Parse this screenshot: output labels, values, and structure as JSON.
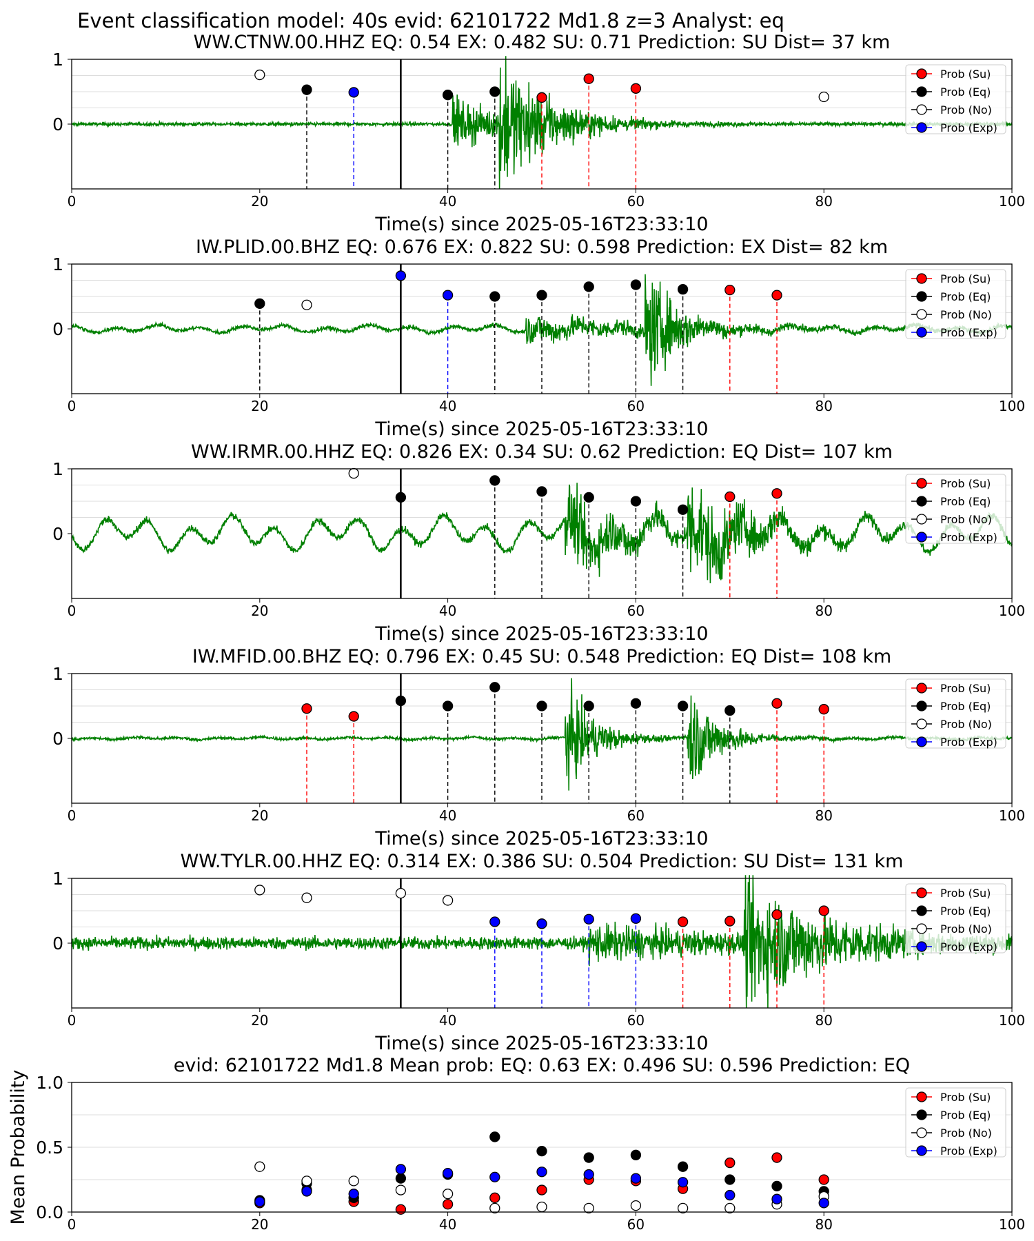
{
  "figure": {
    "suptitle": "Event classification model: 40s evid: 62101722 Md1.8 z=3 Analyst: eq"
  },
  "colors": {
    "waveform": "#008000",
    "su": "#ff0000",
    "eq": "#000000",
    "no": "#ffffff",
    "exp": "#0000ff"
  },
  "legend": {
    "labels": [
      "Prob (Su)",
      "Prob (Eq)",
      "Prob (No)",
      "Prob (Exp)"
    ],
    "placement": "top-right"
  },
  "chart_data": [
    {
      "type": "scatter",
      "title": "WW.CTNW.00.HHZ   EQ: 0.54   EX: 0.482   SU: 0.71   Prediction: SU    Dist= 37 km",
      "xlabel": "Time(s) since 2025-05-16T23:33:10",
      "xlim": [
        0,
        100
      ],
      "ylim": [
        -1,
        1
      ],
      "xticks": [
        "0",
        "20",
        "40",
        "60",
        "80",
        "100"
      ],
      "yticks": [
        "1",
        "0"
      ],
      "event_line": 35,
      "waveform": {
        "amp": 0.25,
        "noise": 0.025,
        "long_period": 0,
        "onsets": [
          [
            40.5,
            0.35,
            6
          ],
          [
            45.5,
            0.85,
            5
          ]
        ]
      },
      "windows": [
        {
          "x": 20,
          "class": "no",
          "prob": 0.76,
          "line": false
        },
        {
          "x": 25,
          "class": "eq",
          "prob": 0.53,
          "line": true
        },
        {
          "x": 30,
          "class": "exp",
          "prob": 0.49,
          "line": true
        },
        {
          "x": 40,
          "class": "eq",
          "prob": 0.45,
          "line": true
        },
        {
          "x": 45,
          "class": "eq",
          "prob": 0.5,
          "line": true
        },
        {
          "x": 50,
          "class": "su",
          "prob": 0.41,
          "line": true
        },
        {
          "x": 55,
          "class": "su",
          "prob": 0.7,
          "line": true
        },
        {
          "x": 60,
          "class": "su",
          "prob": 0.55,
          "line": true
        },
        {
          "x": 80,
          "class": "no",
          "prob": 0.42,
          "line": false
        }
      ]
    },
    {
      "type": "scatter",
      "title": "IW.PLID.00.BHZ   EQ: 0.676   EX: 0.822   SU: 0.598    Prediction: EX     Dist= 82 km",
      "xlabel": "Time(s) since 2025-05-16T23:33:10",
      "xlim": [
        0,
        100
      ],
      "ylim": [
        -1,
        1
      ],
      "xticks": [
        "0",
        "20",
        "40",
        "60",
        "80",
        "100"
      ],
      "yticks": [
        "1",
        "0"
      ],
      "event_line": 35,
      "waveform": {
        "amp": 0.25,
        "noise": 0.03,
        "long_period": 0.06,
        "onsets": [
          [
            48.3,
            0.2,
            12
          ],
          [
            61,
            0.85,
            3
          ]
        ]
      },
      "windows": [
        {
          "x": 20,
          "class": "eq",
          "prob": 0.39,
          "line": true
        },
        {
          "x": 25,
          "class": "no",
          "prob": 0.37,
          "line": false
        },
        {
          "x": 35,
          "class": "exp",
          "prob": 0.82,
          "line": false
        },
        {
          "x": 40,
          "class": "exp",
          "prob": 0.52,
          "line": true
        },
        {
          "x": 45,
          "class": "eq",
          "prob": 0.5,
          "line": true
        },
        {
          "x": 50,
          "class": "eq",
          "prob": 0.52,
          "line": true
        },
        {
          "x": 55,
          "class": "eq",
          "prob": 0.65,
          "line": true
        },
        {
          "x": 60,
          "class": "eq",
          "prob": 0.68,
          "line": true
        },
        {
          "x": 65,
          "class": "eq",
          "prob": 0.61,
          "line": true
        },
        {
          "x": 70,
          "class": "su",
          "prob": 0.6,
          "line": true
        },
        {
          "x": 75,
          "class": "su",
          "prob": 0.52,
          "line": true
        }
      ]
    },
    {
      "type": "scatter",
      "title": "WW.IRMR.00.HHZ   EQ: 0.826   EX: 0.34   SU: 0.62   Prediction: EQ    Dist= 107 km",
      "xlabel": "Time(s) since 2025-05-16T23:33:10",
      "xlim": [
        0,
        100
      ],
      "ylim": [
        -1,
        1
      ],
      "xticks": [
        "0",
        "20",
        "40",
        "60",
        "80",
        "100"
      ],
      "yticks": [
        "1",
        "0"
      ],
      "event_line": 35,
      "waveform": {
        "amp": 0.25,
        "noise": 0.05,
        "long_period": 0.28,
        "onsets": [
          [
            52.5,
            0.5,
            8
          ],
          [
            65.5,
            0.65,
            6
          ]
        ]
      },
      "windows": [
        {
          "x": 30,
          "class": "no",
          "prob": 0.93,
          "line": false
        },
        {
          "x": 35,
          "class": "eq",
          "prob": 0.56,
          "line": false
        },
        {
          "x": 45,
          "class": "eq",
          "prob": 0.82,
          "line": true
        },
        {
          "x": 50,
          "class": "eq",
          "prob": 0.65,
          "line": true
        },
        {
          "x": 55,
          "class": "eq",
          "prob": 0.56,
          "line": true
        },
        {
          "x": 60,
          "class": "eq",
          "prob": 0.5,
          "line": true
        },
        {
          "x": 65,
          "class": "eq",
          "prob": 0.37,
          "line": true
        },
        {
          "x": 70,
          "class": "su",
          "prob": 0.57,
          "line": true
        },
        {
          "x": 75,
          "class": "su",
          "prob": 0.62,
          "line": true
        }
      ]
    },
    {
      "type": "scatter",
      "title": "IW.MFID.00.BHZ   EQ: 0.796   EX: 0.45   SU: 0.548   Prediction: EQ    Dist= 108 km",
      "xlabel": "Time(s) since 2025-05-16T23:33:10",
      "xlim": [
        0,
        100
      ],
      "ylim": [
        -1,
        1
      ],
      "xticks": [
        "0",
        "20",
        "40",
        "60",
        "80",
        "100"
      ],
      "yticks": [
        "1",
        "0"
      ],
      "event_line": 35,
      "waveform": {
        "amp": 0.25,
        "noise": 0.02,
        "long_period": 0.02,
        "onsets": [
          [
            52.5,
            0.75,
            3
          ],
          [
            65.5,
            0.8,
            3
          ]
        ]
      },
      "windows": [
        {
          "x": 25,
          "class": "su",
          "prob": 0.46,
          "line": true
        },
        {
          "x": 30,
          "class": "su",
          "prob": 0.34,
          "line": true
        },
        {
          "x": 35,
          "class": "eq",
          "prob": 0.58,
          "line": false
        },
        {
          "x": 40,
          "class": "eq",
          "prob": 0.5,
          "line": true
        },
        {
          "x": 45,
          "class": "eq",
          "prob": 0.79,
          "line": true
        },
        {
          "x": 50,
          "class": "eq",
          "prob": 0.5,
          "line": true
        },
        {
          "x": 55,
          "class": "eq",
          "prob": 0.5,
          "line": true
        },
        {
          "x": 60,
          "class": "eq",
          "prob": 0.54,
          "line": true
        },
        {
          "x": 65,
          "class": "eq",
          "prob": 0.5,
          "line": true
        },
        {
          "x": 70,
          "class": "eq",
          "prob": 0.43,
          "line": true
        },
        {
          "x": 75,
          "class": "su",
          "prob": 0.54,
          "line": true
        },
        {
          "x": 80,
          "class": "su",
          "prob": 0.45,
          "line": true
        }
      ]
    },
    {
      "type": "scatter",
      "title": "WW.TYLR.00.HHZ   EQ: 0.314   EX: 0.386   SU: 0.504    Prediction: SU     Dist= 131 km",
      "xlabel": "Time(s) since 2025-05-16T23:33:10",
      "xlim": [
        0,
        100
      ],
      "ylim": [
        -1,
        1
      ],
      "xticks": [
        "0",
        "20",
        "40",
        "60",
        "80",
        "100"
      ],
      "yticks": [
        "1",
        "0"
      ],
      "event_line": 35,
      "waveform": {
        "amp": 0.25,
        "noise": 0.09,
        "long_period": 0,
        "onsets": [
          [
            55,
            0.2,
            15
          ],
          [
            71.5,
            0.9,
            8
          ]
        ]
      },
      "windows": [
        {
          "x": 20,
          "class": "no",
          "prob": 0.82,
          "line": false
        },
        {
          "x": 25,
          "class": "no",
          "prob": 0.7,
          "line": false
        },
        {
          "x": 35,
          "class": "no",
          "prob": 0.77,
          "line": false
        },
        {
          "x": 40,
          "class": "no",
          "prob": 0.66,
          "line": false
        },
        {
          "x": 45,
          "class": "exp",
          "prob": 0.33,
          "line": true
        },
        {
          "x": 50,
          "class": "exp",
          "prob": 0.3,
          "line": true
        },
        {
          "x": 55,
          "class": "exp",
          "prob": 0.37,
          "line": true
        },
        {
          "x": 60,
          "class": "exp",
          "prob": 0.38,
          "line": true
        },
        {
          "x": 65,
          "class": "su",
          "prob": 0.33,
          "line": true
        },
        {
          "x": 70,
          "class": "su",
          "prob": 0.34,
          "line": true
        },
        {
          "x": 75,
          "class": "su",
          "prob": 0.44,
          "line": true
        },
        {
          "x": 80,
          "class": "su",
          "prob": 0.5,
          "line": true
        }
      ]
    },
    {
      "type": "scatter",
      "title": "evid: 62101722   Md1.8   Mean prob:    EQ: 0.63   EX: 0.496   SU: 0.596   Prediction: EQ",
      "xlabel": "",
      "ylabel": "Mean Probability",
      "xlim": [
        0,
        100
      ],
      "ylim": [
        0,
        1
      ],
      "xticks": [
        "0",
        "20",
        "40",
        "60",
        "80",
        "100"
      ],
      "yticks": [
        "1.0",
        "0.5",
        "0.0"
      ],
      "x": [
        20,
        25,
        30,
        35,
        40,
        45,
        50,
        55,
        60,
        65,
        70,
        75,
        80
      ],
      "series": [
        {
          "name": "Prob (Su)",
          "class": "su",
          "values": [
            0.07,
            0.17,
            0.08,
            0.02,
            0.06,
            0.11,
            0.17,
            0.25,
            0.24,
            0.18,
            0.38,
            0.42,
            0.25
          ]
        },
        {
          "name": "Prob (Eq)",
          "class": "eq",
          "values": [
            0.09,
            0.22,
            0.11,
            0.26,
            0.29,
            0.58,
            0.47,
            0.42,
            0.44,
            0.35,
            0.25,
            0.2,
            0.16
          ]
        },
        {
          "name": "Prob (No)",
          "class": "no",
          "values": [
            0.35,
            0.24,
            0.24,
            0.17,
            0.14,
            0.03,
            0.04,
            0.03,
            0.05,
            0.03,
            0.03,
            0.06,
            0.12
          ]
        },
        {
          "name": "Prob (Exp)",
          "class": "exp",
          "values": [
            0.08,
            0.16,
            0.14,
            0.33,
            0.3,
            0.27,
            0.31,
            0.29,
            0.26,
            0.23,
            0.13,
            0.1,
            0.07
          ]
        }
      ]
    }
  ]
}
